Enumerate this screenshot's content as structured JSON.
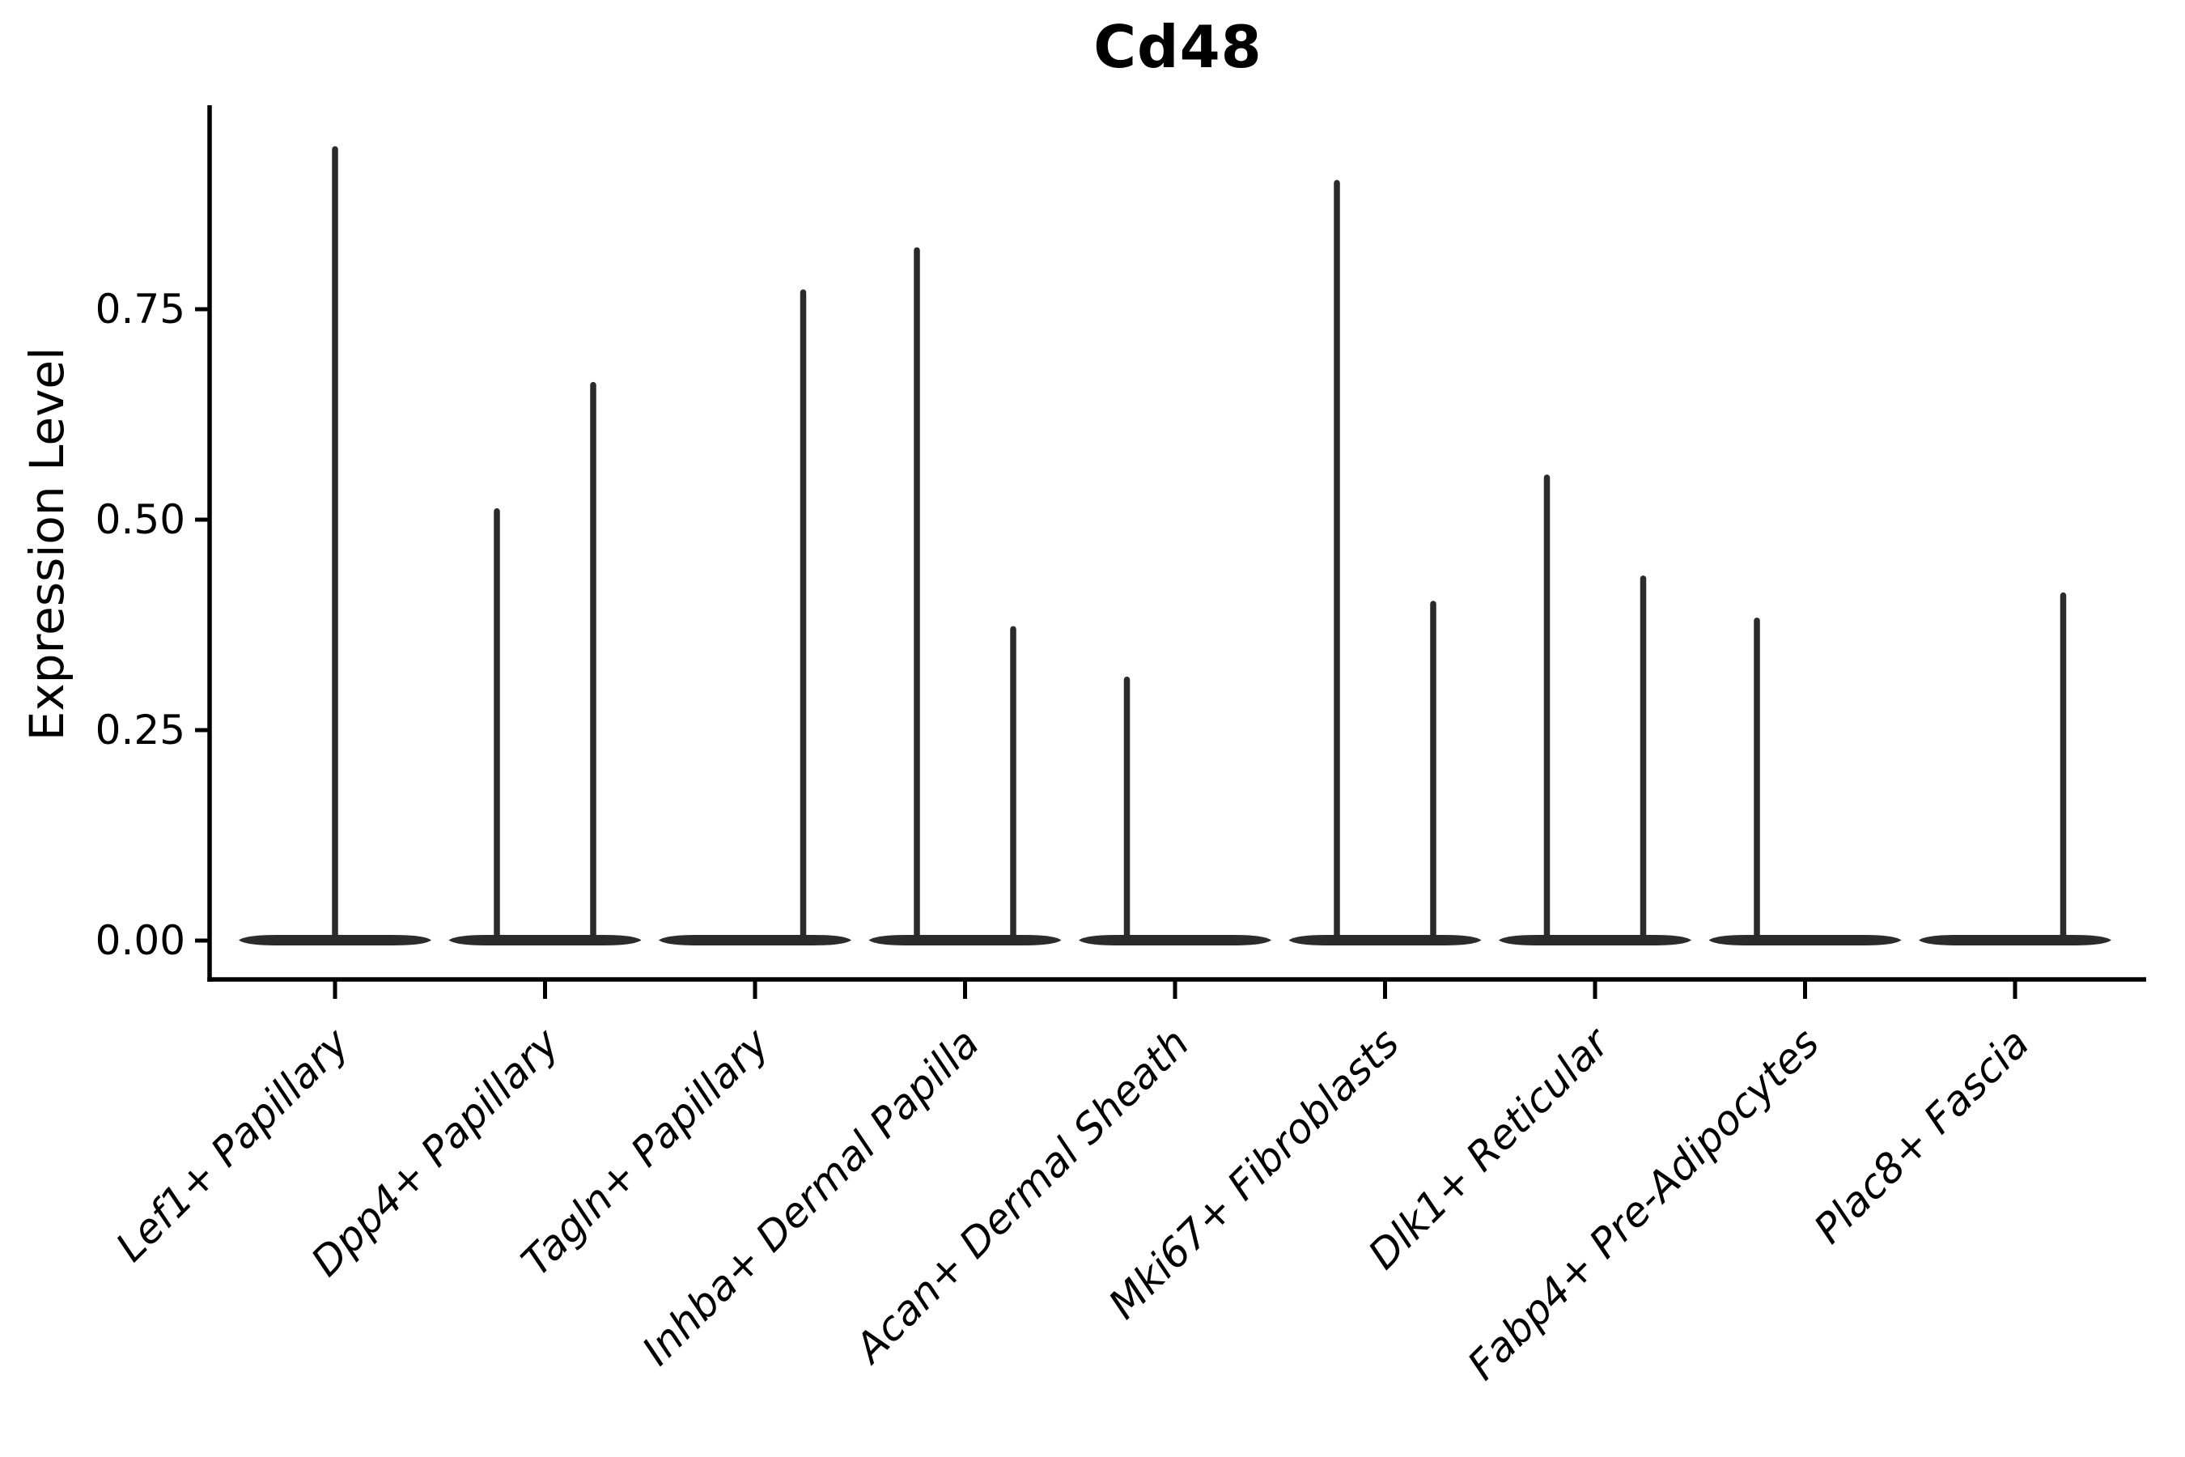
{
  "title": "Cd48",
  "chart_data": {
    "type": "violin",
    "title": "Cd48",
    "xlabel": "",
    "ylabel": "Expression Level",
    "ylim": [
      0,
      0.99
    ],
    "yticks": [
      0,
      0.25,
      0.5,
      0.75
    ],
    "ytick_labels": [
      "0.00",
      "0.25",
      "0.50",
      "0.75"
    ],
    "grid": false,
    "legend": "none",
    "x_tick_rotation": 45,
    "violin_color": "#2b2b2b",
    "axis_color": "#000000",
    "categories": [
      "Lef1+ Papillary",
      "Dpp4+ Papillary",
      "Tagln+ Papillary",
      "Inhba+ Dermal Papilla",
      "Acan+ Dermal Sheath",
      "Mki67+ Fibroblasts",
      "Dlk1+ Reticular",
      "Fabp4+ Pre-Adipocytes",
      "Plac8+ Fascia"
    ],
    "series": [
      {
        "category": "Lef1+ Papillary",
        "violins": [
          {
            "position": "center",
            "max_expression": 0.94
          }
        ]
      },
      {
        "category": "Dpp4+ Papillary",
        "violins": [
          {
            "position": "left",
            "max_expression": 0.51
          },
          {
            "position": "right",
            "max_expression": 0.66
          }
        ]
      },
      {
        "category": "Tagln+ Papillary",
        "violins": [
          {
            "position": "left",
            "max_expression": 0.0
          },
          {
            "position": "right",
            "max_expression": 0.77
          }
        ]
      },
      {
        "category": "Inhba+ Dermal Papilla",
        "violins": [
          {
            "position": "left",
            "max_expression": 0.82
          },
          {
            "position": "right",
            "max_expression": 0.37
          }
        ]
      },
      {
        "category": "Acan+ Dermal Sheath",
        "violins": [
          {
            "position": "left",
            "max_expression": 0.31
          },
          {
            "position": "right",
            "max_expression": 0.0
          }
        ]
      },
      {
        "category": "Mki67+ Fibroblasts",
        "violins": [
          {
            "position": "left",
            "max_expression": 0.9
          },
          {
            "position": "right",
            "max_expression": 0.4
          }
        ]
      },
      {
        "category": "Dlk1+ Reticular",
        "violins": [
          {
            "position": "left",
            "max_expression": 0.55
          },
          {
            "position": "right",
            "max_expression": 0.43
          }
        ]
      },
      {
        "category": "Fabp4+ Pre-Adipocytes",
        "violins": [
          {
            "position": "left",
            "max_expression": 0.38
          },
          {
            "position": "right",
            "max_expression": 0.0
          }
        ]
      },
      {
        "category": "Plac8+ Fascia",
        "violins": [
          {
            "position": "left",
            "max_expression": 0.0
          },
          {
            "position": "right",
            "max_expression": 0.41
          }
        ]
      }
    ]
  }
}
